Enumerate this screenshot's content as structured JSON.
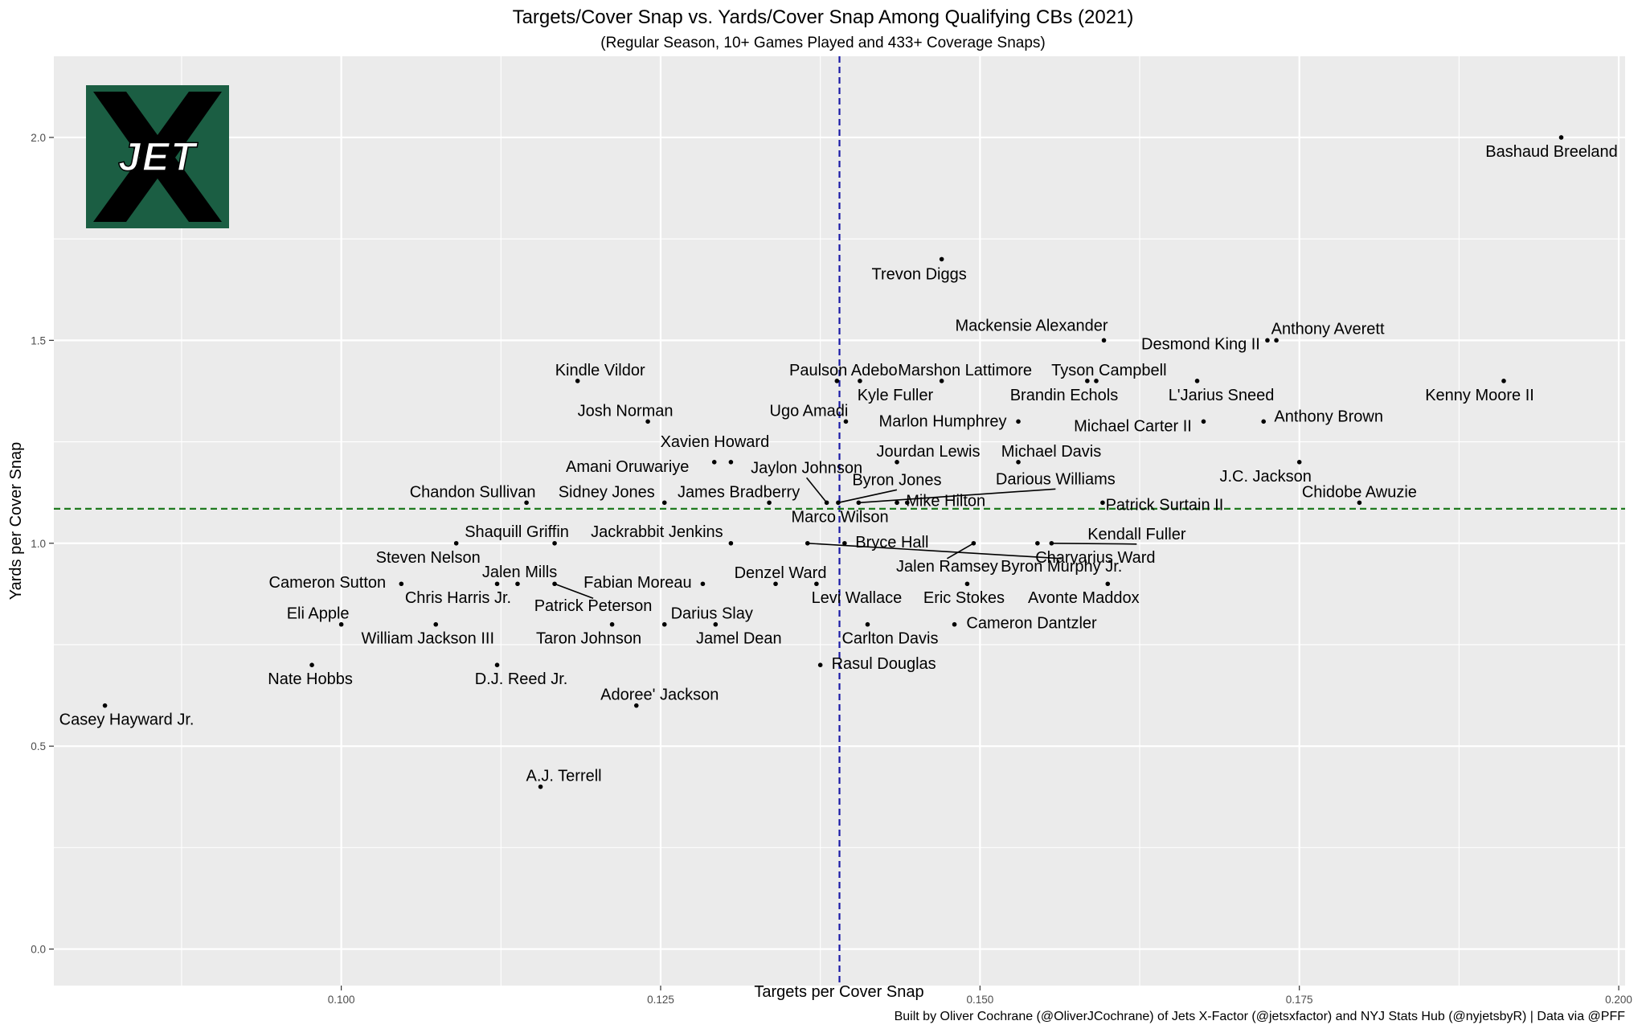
{
  "chart_data": {
    "type": "scatter",
    "title": "Targets/Cover Snap vs. Yards/Cover Snap Among Qualifying CBs (2021)",
    "subtitle": "(Regular Season, 10+ Games Played and 433+ Coverage Snaps)",
    "xlabel": "Targets per Cover Snap",
    "ylabel": "Yards per Cover Snap",
    "caption": "Built by Oliver Cochrane (@OliverJCochrane) of Jets X-Factor (@jetsxfactor) and NYJ Stats Hub (@nyjetsbyR) | Data via @PFF",
    "xlim": [
      0.0775,
      0.2005
    ],
    "ylim": [
      -0.09,
      2.2
    ],
    "x_ticks": [
      0.1,
      0.125,
      0.15,
      0.175,
      0.2
    ],
    "x_tick_labels": [
      "0.100",
      "0.125",
      "0.150",
      "0.175",
      "0.200"
    ],
    "y_ticks": [
      0.0,
      0.5,
      1.0,
      1.5,
      2.0
    ],
    "y_tick_labels": [
      "0.0",
      "0.5",
      "1.0",
      "1.5",
      "2.0"
    ],
    "vline_x": 0.139,
    "hline_y": 1.085,
    "vline_color": "#1a1aa6",
    "hline_color": "#1e7a1e",
    "panel_color": "#ebebeb",
    "grid_color": "#ffffff",
    "logo": {
      "text": "JET",
      "bg_color": "#1b5e43"
    },
    "points": [
      {
        "name": "Bashaud Breeland",
        "x": 0.1955,
        "y": 2.0
      },
      {
        "name": "Trevon Diggs",
        "x": 0.147,
        "y": 1.7
      },
      {
        "name": "Mackensie Alexander",
        "x": 0.1597,
        "y": 1.5
      },
      {
        "name": "Desmond King II",
        "x": 0.1725,
        "y": 1.5
      },
      {
        "name": "Anthony Averett",
        "x": 0.1732,
        "y": 1.5
      },
      {
        "name": "Kindle Vildor",
        "x": 0.1185,
        "y": 1.4
      },
      {
        "name": "Paulson Adebo",
        "x": 0.1388,
        "y": 1.4
      },
      {
        "name": "Kyle Fuller",
        "x": 0.1406,
        "y": 1.4
      },
      {
        "name": "Marshon Lattimore",
        "x": 0.147,
        "y": 1.4
      },
      {
        "name": "Tyson Campbell",
        "x": 0.1584,
        "y": 1.4
      },
      {
        "name": "Brandin Echols",
        "x": 0.1591,
        "y": 1.4
      },
      {
        "name": "L'Jarius Sneed",
        "x": 0.167,
        "y": 1.4
      },
      {
        "name": "Kenny Moore II",
        "x": 0.191,
        "y": 1.4
      },
      {
        "name": "Josh Norman",
        "x": 0.124,
        "y": 1.3
      },
      {
        "name": "Ugo Amadi",
        "x": 0.1395,
        "y": 1.3
      },
      {
        "name": "Marlon Humphrey",
        "x": 0.153,
        "y": 1.3
      },
      {
        "name": "Michael Carter II",
        "x": 0.1675,
        "y": 1.3
      },
      {
        "name": "Anthony Brown",
        "x": 0.1722,
        "y": 1.3
      },
      {
        "name": "Xavien Howard",
        "x": 0.1305,
        "y": 1.2
      },
      {
        "name": "Amani Oruwariye",
        "x": 0.1292,
        "y": 1.2
      },
      {
        "name": "Jourdan Lewis",
        "x": 0.1435,
        "y": 1.2
      },
      {
        "name": "Michael Davis",
        "x": 0.153,
        "y": 1.2
      },
      {
        "name": "J.C. Jackson",
        "x": 0.175,
        "y": 1.2
      },
      {
        "name": "Jaylon Johnson",
        "x": 0.138,
        "y": 1.1
      },
      {
        "name": "Byron Jones",
        "x": 0.1389,
        "y": 1.1
      },
      {
        "name": "Darious Williams",
        "x": 0.1405,
        "y": 1.1
      },
      {
        "name": "Chandon Sullivan",
        "x": 0.1145,
        "y": 1.1
      },
      {
        "name": "Sidney Jones",
        "x": 0.1253,
        "y": 1.1
      },
      {
        "name": "James Bradberry",
        "x": 0.1335,
        "y": 1.1
      },
      {
        "name": "Mike Hilton",
        "x": 0.1443,
        "y": 1.1
      },
      {
        "name": "Marco Wilson",
        "x": 0.1435,
        "y": 1.1
      },
      {
        "name": "Patrick Surtain II",
        "x": 0.1596,
        "y": 1.1
      },
      {
        "name": "Chidobe Awuzie",
        "x": 0.1797,
        "y": 1.1
      },
      {
        "name": "Shaquill Griffin",
        "x": 0.1167,
        "y": 1.0
      },
      {
        "name": "Steven Nelson",
        "x": 0.109,
        "y": 1.0
      },
      {
        "name": "Jackrabbit Jenkins",
        "x": 0.1305,
        "y": 1.0
      },
      {
        "name": "Bryce Hall",
        "x": 0.1394,
        "y": 1.0
      },
      {
        "name": "Byron Murphy Jr.",
        "x": 0.1365,
        "y": 1.0
      },
      {
        "name": "Jalen Ramsey",
        "x": 0.1495,
        "y": 1.0
      },
      {
        "name": "Charvarius Ward",
        "x": 0.1545,
        "y": 1.0
      },
      {
        "name": "Kendall Fuller",
        "x": 0.1556,
        "y": 1.0
      },
      {
        "name": "Cameron Sutton",
        "x": 0.1047,
        "y": 0.9
      },
      {
        "name": "Jalen Mills",
        "x": 0.1122,
        "y": 0.9
      },
      {
        "name": "Chris Harris Jr.",
        "x": 0.1138,
        "y": 0.9
      },
      {
        "name": "Patrick Peterson",
        "x": 0.1167,
        "y": 0.9
      },
      {
        "name": "Fabian Moreau",
        "x": 0.1283,
        "y": 0.9
      },
      {
        "name": "Denzel Ward",
        "x": 0.134,
        "y": 0.9
      },
      {
        "name": "Levi Wallace",
        "x": 0.1372,
        "y": 0.9
      },
      {
        "name": "Eric Stokes",
        "x": 0.149,
        "y": 0.9
      },
      {
        "name": "Avonte Maddox",
        "x": 0.16,
        "y": 0.9
      },
      {
        "name": "Eli Apple",
        "x": 0.1,
        "y": 0.8
      },
      {
        "name": "William Jackson III",
        "x": 0.1074,
        "y": 0.8
      },
      {
        "name": "Taron Johnson",
        "x": 0.1212,
        "y": 0.8
      },
      {
        "name": "Darius Slay",
        "x": 0.1253,
        "y": 0.8
      },
      {
        "name": "Jamel Dean",
        "x": 0.1293,
        "y": 0.8
      },
      {
        "name": "Carlton Davis",
        "x": 0.1412,
        "y": 0.8
      },
      {
        "name": "Cameron Dantzler",
        "x": 0.148,
        "y": 0.8
      },
      {
        "name": "Nate Hobbs",
        "x": 0.0977,
        "y": 0.7
      },
      {
        "name": "D.J. Reed Jr.",
        "x": 0.1122,
        "y": 0.7
      },
      {
        "name": "Rasul Douglas",
        "x": 0.1375,
        "y": 0.7
      },
      {
        "name": "Casey Hayward Jr.",
        "x": 0.0815,
        "y": 0.6
      },
      {
        "name": "Adoree' Jackson",
        "x": 0.1231,
        "y": 0.6
      },
      {
        "name": "A.J. Terrell",
        "x": 0.1156,
        "y": 0.4
      }
    ]
  }
}
